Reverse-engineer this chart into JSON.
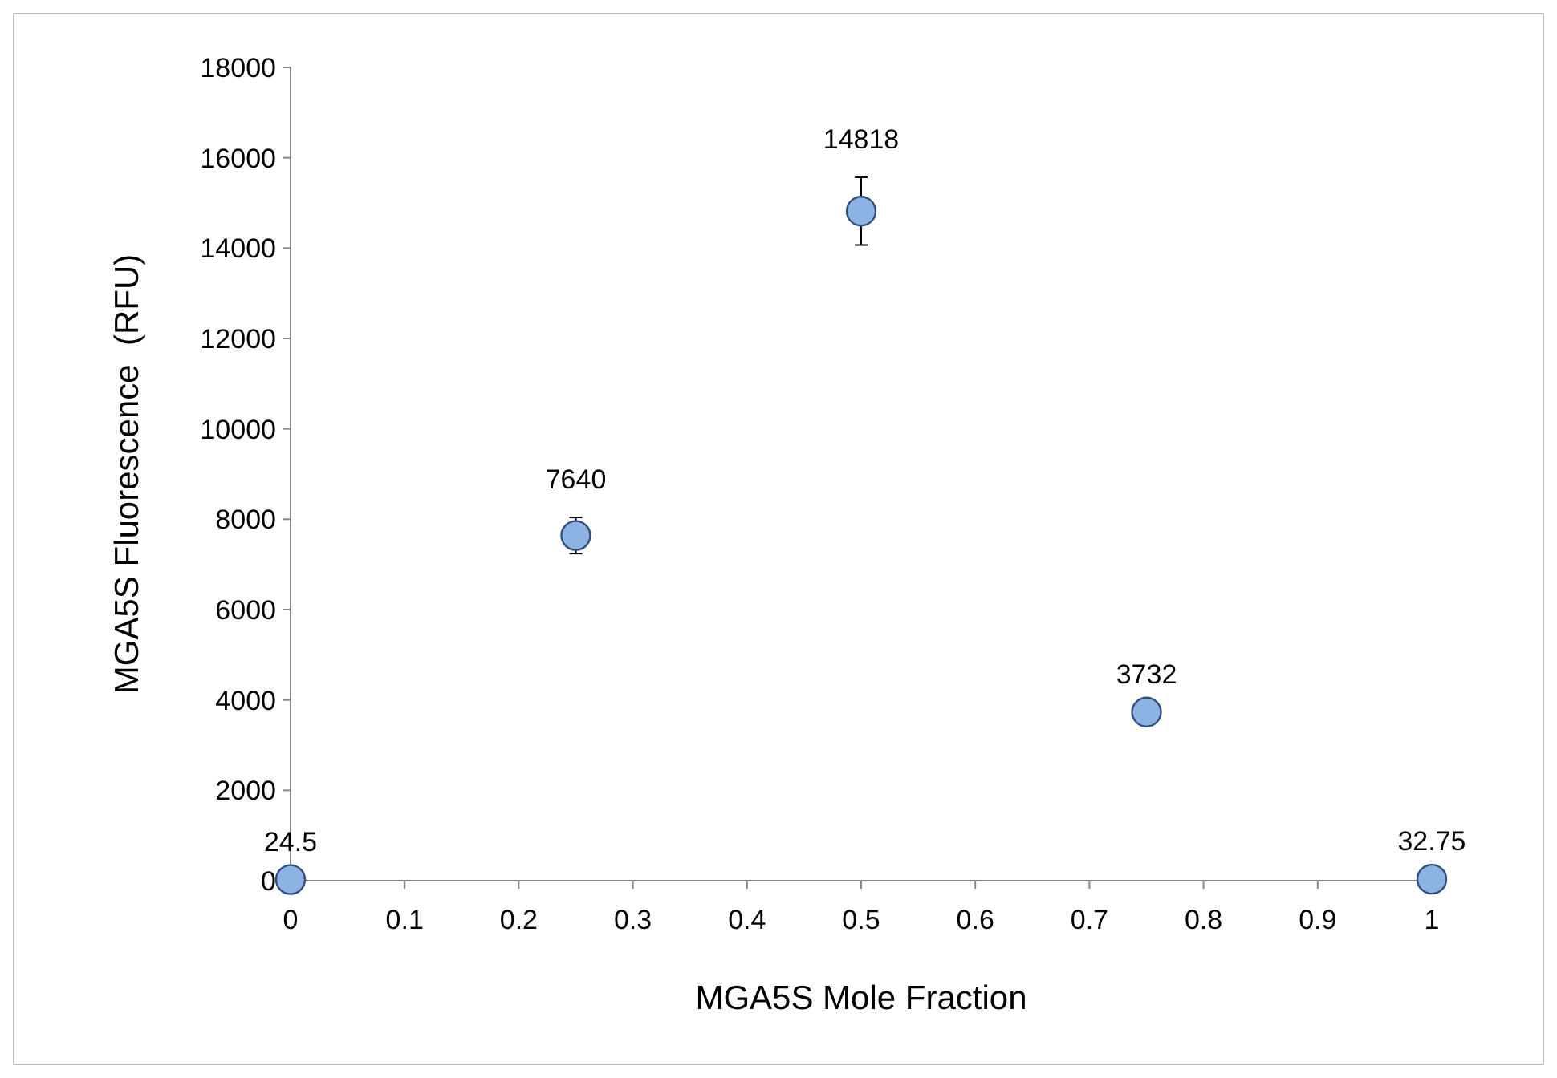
{
  "chart_data": {
    "type": "scatter",
    "xlabel": "MGA5S Mole Fraction",
    "ylabel": "MGA5S Fluorescence  (RFU)",
    "x": [
      0,
      0.25,
      0.5,
      0.75,
      1
    ],
    "series": [
      {
        "color": "#8db3e2",
        "values": [
          24.5,
          7640,
          14818,
          3732,
          32.75
        ],
        "errors": [
          null,
          400,
          750,
          null,
          null
        ]
      }
    ],
    "xlim": [
      0,
      1
    ],
    "xticks": [
      0,
      0.1,
      0.2,
      0.3,
      0.4,
      0.5,
      0.6,
      0.7,
      0.8,
      0.9,
      1
    ],
    "ylim": [
      0,
      18000
    ],
    "yticks": [
      0,
      2000,
      4000,
      6000,
      8000,
      10000,
      12000,
      14000,
      16000,
      18000
    ],
    "data_labels": true,
    "marker": "circle"
  }
}
